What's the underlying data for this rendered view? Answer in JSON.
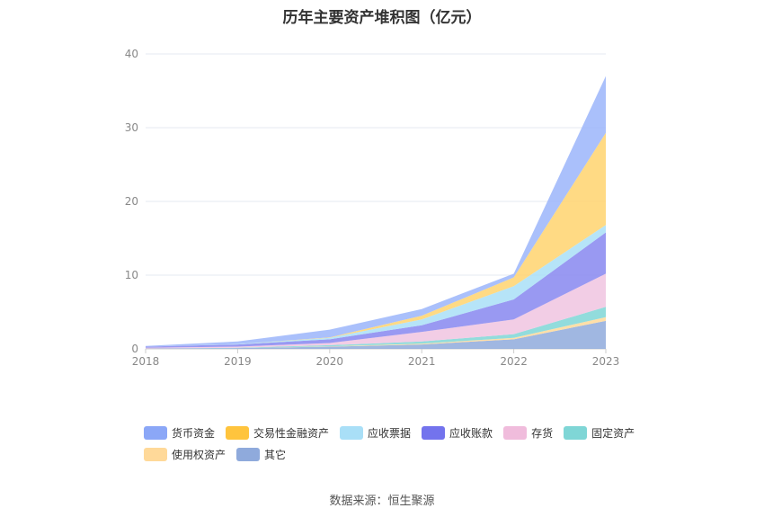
{
  "title": "历年主要资产堆积图（亿元）",
  "source": "数据来源：恒生聚源",
  "chart_data": {
    "type": "area",
    "stacked": true,
    "title": "历年主要资产堆积图（亿元）",
    "x": [
      "2018",
      "2019",
      "2020",
      "2021",
      "2022",
      "2023"
    ],
    "ylim": [
      0,
      40
    ],
    "yticks": [
      0,
      10,
      20,
      30,
      40
    ],
    "grid": true,
    "legend_position": "bottom",
    "series": [
      {
        "name": "其它",
        "color": "#8faadc",
        "values": [
          0.05,
          0.1,
          0.3,
          0.6,
          1.3,
          3.8
        ]
      },
      {
        "name": "使用权资产",
        "color": "#ffd999",
        "values": [
          0.0,
          0.0,
          0.05,
          0.1,
          0.2,
          0.5
        ]
      },
      {
        "name": "固定资产",
        "color": "#7fd6d6",
        "values": [
          0.0,
          0.05,
          0.15,
          0.3,
          0.5,
          1.4
        ]
      },
      {
        "name": "存货",
        "color": "#f0c4e0",
        "values": [
          0.1,
          0.15,
          0.3,
          1.3,
          2.0,
          4.5
        ]
      },
      {
        "name": "应收账款",
        "color": "#8787f0",
        "values": [
          0.15,
          0.3,
          0.5,
          0.9,
          2.7,
          5.6
        ]
      },
      {
        "name": "应收票据",
        "color": "#a9dff7",
        "values": [
          0.0,
          0.05,
          0.2,
          0.8,
          1.8,
          1.0
        ]
      },
      {
        "name": "交易性金融资产",
        "color": "#ffd36e",
        "values": [
          0.0,
          0.0,
          0.05,
          0.5,
          1.2,
          12.5
        ]
      },
      {
        "name": "货币资金",
        "color": "#9bb5fa",
        "values": [
          0.1,
          0.35,
          1.05,
          0.9,
          0.5,
          7.7
        ]
      }
    ]
  },
  "legend": [
    {
      "label": "货币资金",
      "color": "#8ba7f7"
    },
    {
      "label": "交易性金融资产",
      "color": "#ffc43d"
    },
    {
      "label": "应收票据",
      "color": "#a9dff7"
    },
    {
      "label": "应收账款",
      "color": "#7373ed"
    },
    {
      "label": "存货",
      "color": "#f0bcdc"
    },
    {
      "label": "固定资产",
      "color": "#7fd6d6"
    },
    {
      "label": "使用权资产",
      "color": "#ffd999"
    },
    {
      "label": "其它",
      "color": "#8faadc"
    }
  ]
}
